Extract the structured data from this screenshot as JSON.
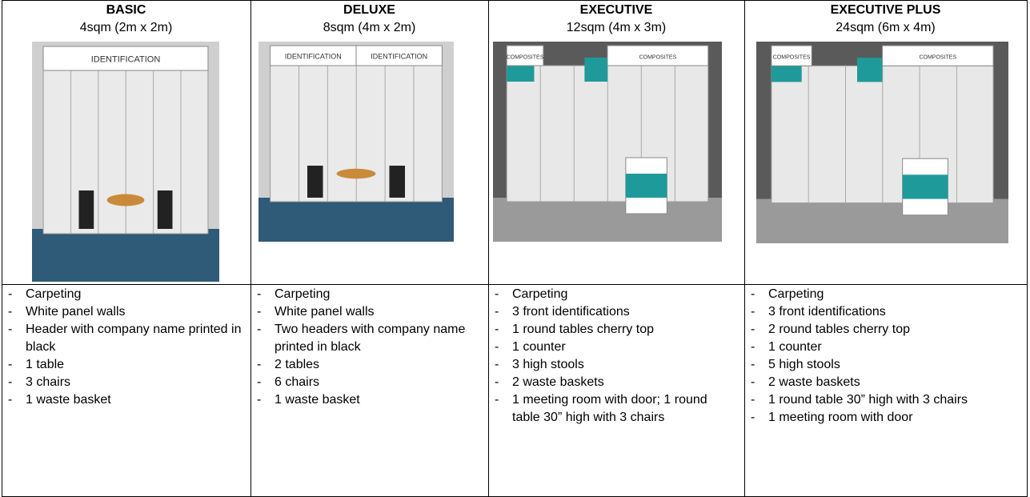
{
  "columns": [
    {
      "title": "BASIC",
      "size": "4sqm (2m x 2m)",
      "image_labels": [
        "IDENTIFICATION"
      ],
      "items": [
        "Carpeting",
        "White panel walls",
        "Header with company name printed in black",
        "1 table",
        "3 chairs",
        "1 waste basket"
      ]
    },
    {
      "title": "DELUXE",
      "size": "8sqm (4m x 2m)",
      "image_labels": [
        "IDENTIFICATION",
        "IDENTIFICATION"
      ],
      "items": [
        "Carpeting",
        "White panel walls",
        "Two headers with company name printed in black",
        "2 tables",
        "6 chairs",
        "1 waste basket"
      ]
    },
    {
      "title": "EXECUTIVE",
      "size": "12sqm (4m x 3m)",
      "image_labels": [
        "COMPOSITES",
        "COMPOSITES"
      ],
      "items": [
        "Carpeting",
        "3 front identifications",
        "1 round tables cherry top",
        "1 counter",
        "3 high stools",
        "2 waste baskets",
        "1 meeting room with door; 1 round table 30” high with 3 chairs"
      ]
    },
    {
      "title": "EXECUTIVE PLUS",
      "size": "24sqm (6m x 4m)",
      "image_labels": [
        "COMPOSITES",
        "COMPOSITES"
      ],
      "items": [
        "Carpeting",
        "3 front identifications",
        "2 round tables cherry top",
        "1 counter",
        "5 high stools",
        "2 waste baskets",
        "1 round table 30” high with 3 chairs",
        "1 meeting room with door"
      ]
    }
  ]
}
